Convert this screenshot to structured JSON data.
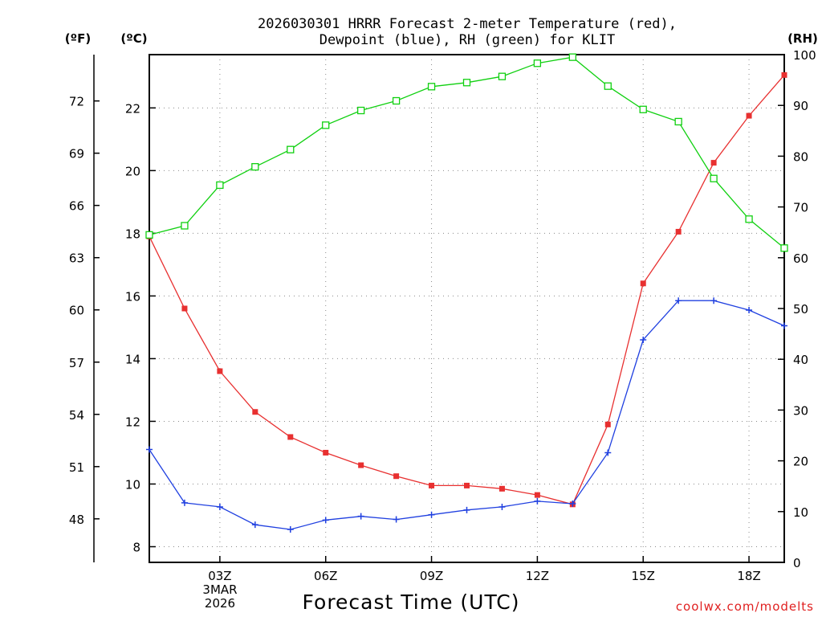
{
  "chart_data": {
    "type": "line",
    "title_line1": "2026030301 HRRR Forecast 2-meter Temperature (red),",
    "title_line2": "Dewpoint (blue), RH (green) for KLIT",
    "xlabel": "Forecast Time (UTC)",
    "credit": "coolwx.com/modelts",
    "date_label_1": "3MAR",
    "date_label_2": "2026",
    "units": {
      "fahrenheit": "(ºF)",
      "celsius": "(ºC)",
      "rh": "(RH)"
    },
    "x": [
      1,
      2,
      3,
      4,
      5,
      6,
      7,
      8,
      9,
      10,
      11,
      12,
      13,
      14,
      15,
      16,
      17,
      18,
      19
    ],
    "xlim": [
      1,
      19
    ],
    "x_ticks": [
      {
        "value": 3,
        "label": "03Z"
      },
      {
        "value": 6,
        "label": "06Z"
      },
      {
        "value": 9,
        "label": "09Z"
      },
      {
        "value": 12,
        "label": "12Z"
      },
      {
        "value": 15,
        "label": "15Z"
      },
      {
        "value": 18,
        "label": "18Z"
      }
    ],
    "ylim_c": [
      7.5,
      23.7
    ],
    "y_ticks_c": [
      8,
      10,
      12,
      14,
      16,
      18,
      20,
      22
    ],
    "y_ticks_f": [
      48,
      51,
      54,
      57,
      60,
      63,
      66,
      69,
      72
    ],
    "ylim_rh": [
      0,
      100
    ],
    "y_ticks_rh": [
      0,
      10,
      20,
      30,
      40,
      50,
      60,
      70,
      80,
      90,
      100
    ],
    "series": [
      {
        "name": "Temperature",
        "axis": "celsius",
        "color": "#e83030",
        "marker": "filled-square",
        "values": [
          17.9,
          15.6,
          13.6,
          12.3,
          11.5,
          11.0,
          10.6,
          10.25,
          9.95,
          9.95,
          9.85,
          9.65,
          9.35,
          11.9,
          16.4,
          18.05,
          20.25,
          21.75,
          23.05
        ]
      },
      {
        "name": "Dewpoint",
        "axis": "celsius",
        "color": "#2040e0",
        "marker": "plus",
        "values": [
          11.1,
          9.4,
          9.27,
          8.7,
          8.55,
          8.85,
          8.97,
          8.87,
          9.02,
          9.17,
          9.27,
          9.45,
          9.37,
          11.0,
          14.6,
          15.85,
          15.85,
          15.55,
          15.05
        ]
      },
      {
        "name": "RH",
        "axis": "rh",
        "color": "#10d010",
        "marker": "open-square",
        "values": [
          64.5,
          66.3,
          74.3,
          77.9,
          81.3,
          86.1,
          89.0,
          90.9,
          93.7,
          94.5,
          95.7,
          98.3,
          99.5,
          93.8,
          89.2,
          86.8,
          75.6,
          67.6,
          61.9
        ]
      }
    ]
  }
}
